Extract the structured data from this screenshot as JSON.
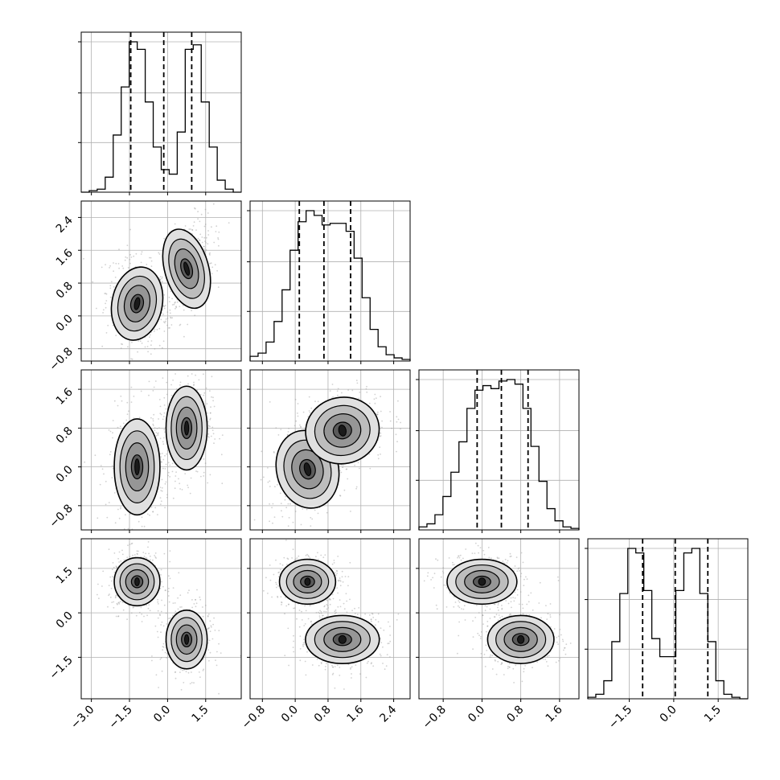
{
  "chart_data": {
    "type": "corner",
    "grid": true,
    "dimensions": 4,
    "variables": [
      {
        "index": 0,
        "range": [
          -3.4,
          2.9
        ],
        "ticks": [
          -3.0,
          -1.5,
          0.0,
          1.5
        ],
        "tick_labels": [
          "−3.0",
          "−1.5",
          "0.0",
          "1.5"
        ],
        "quantiles": [
          -1.45,
          -0.15,
          0.95
        ],
        "modes": [
          [
            -1.2,
            0.0
          ],
          [
            0.75,
            0.8
          ]
        ]
      },
      {
        "index": 1,
        "range": [
          -1.1,
          2.8
        ],
        "ticks": [
          -0.8,
          0.0,
          0.8,
          1.6,
          2.4
        ],
        "tick_labels": [
          "−0.8",
          "0.0",
          "0.8",
          "1.6",
          "2.4"
        ],
        "quantiles": [
          0.1,
          0.7,
          1.35
        ],
        "modes": [
          [
            0.3,
            0.0
          ],
          [
            1.15,
            0.8
          ]
        ]
      },
      {
        "index": 2,
        "range": [
          -1.3,
          2.0
        ],
        "ticks": [
          -0.8,
          0.0,
          0.8,
          1.6
        ],
        "tick_labels": [
          "−0.8",
          "0.0",
          "0.8",
          "1.6"
        ],
        "quantiles": [
          -0.1,
          0.4,
          0.95
        ],
        "modes": [
          [
            0.0,
            0.0
          ],
          [
            0.8,
            0.8
          ]
        ]
      },
      {
        "index": 3,
        "range": [
          -2.9,
          2.5
        ],
        "ticks": [
          -1.5,
          0.0,
          1.5
        ],
        "tick_labels": [
          "−1.5",
          "0.0",
          "1.5"
        ],
        "quantiles": [
          -1.05,
          0.05,
          1.15
        ],
        "modes": [
          [
            1.05,
            0.0
          ],
          [
            -0.9,
            0.8
          ]
        ]
      }
    ],
    "histograms": [
      {
        "variable": 0,
        "bin_edges": [
          -3.4,
          -3.085,
          -2.77,
          -2.455,
          -2.14,
          -1.825,
          -1.51,
          -1.195,
          -0.88,
          -0.565,
          -0.25,
          0.065,
          0.38,
          0.695,
          1.01,
          1.325,
          1.64,
          1.955,
          2.27,
          2.585,
          2.9
        ],
        "counts": [
          0,
          0.01,
          0.02,
          0.1,
          0.38,
          0.7,
          1.0,
          0.95,
          0.6,
          0.3,
          0.15,
          0.12,
          0.4,
          0.95,
          0.98,
          0.6,
          0.3,
          0.08,
          0.02,
          0.0
        ]
      },
      {
        "variable": 1,
        "bin_edges": [
          -1.1,
          -0.905,
          -0.71,
          -0.515,
          -0.32,
          -0.125,
          0.07,
          0.265,
          0.46,
          0.655,
          0.85,
          1.045,
          1.24,
          1.435,
          1.63,
          1.825,
          2.02,
          2.215,
          2.41,
          2.605,
          2.8
        ],
        "counts": [
          0.03,
          0.05,
          0.12,
          0.25,
          0.45,
          0.7,
          0.88,
          0.95,
          0.92,
          0.86,
          0.87,
          0.87,
          0.82,
          0.65,
          0.4,
          0.2,
          0.09,
          0.04,
          0.02,
          0.01
        ]
      },
      {
        "variable": 2,
        "bin_edges": [
          -1.3,
          -1.135,
          -0.97,
          -0.805,
          -0.64,
          -0.475,
          -0.31,
          -0.145,
          0.02,
          0.185,
          0.35,
          0.515,
          0.68,
          0.845,
          1.01,
          1.175,
          1.34,
          1.505,
          1.67,
          1.835,
          2.0
        ],
        "counts": [
          0.02,
          0.04,
          0.1,
          0.22,
          0.38,
          0.58,
          0.8,
          0.92,
          0.95,
          0.93,
          0.98,
          0.99,
          0.96,
          0.8,
          0.55,
          0.32,
          0.14,
          0.06,
          0.02,
          0.01
        ]
      },
      {
        "variable": 3,
        "bin_edges": [
          -2.9,
          -2.63,
          -2.36,
          -2.09,
          -1.82,
          -1.55,
          -1.28,
          -1.01,
          -0.74,
          -0.47,
          -0.2,
          0.07,
          0.34,
          0.61,
          0.88,
          1.15,
          1.42,
          1.69,
          1.96,
          2.23,
          2.5
        ],
        "counts": [
          0.01,
          0.03,
          0.12,
          0.38,
          0.7,
          1.0,
          0.97,
          0.72,
          0.4,
          0.28,
          0.28,
          0.72,
          0.97,
          1.0,
          0.7,
          0.38,
          0.12,
          0.03,
          0.01,
          0.0
        ]
      }
    ],
    "contour_panels": [
      {
        "x": 0,
        "y": 1,
        "clusters": [
          {
            "cx": -1.2,
            "cy": 0.3,
            "sx": 0.55,
            "sy": 0.5,
            "rho": -0.25
          },
          {
            "cx": 0.75,
            "cy": 1.15,
            "sx": 0.48,
            "sy": 0.55,
            "rho": 0.35
          }
        ]
      },
      {
        "x": 0,
        "y": 2,
        "clusters": [
          {
            "cx": -1.2,
            "cy": 0.0,
            "sx": 0.5,
            "sy": 0.55,
            "rho": 0.0
          },
          {
            "cx": 0.75,
            "cy": 0.8,
            "sx": 0.45,
            "sy": 0.48,
            "rho": 0.0
          }
        ]
      },
      {
        "x": 1,
        "y": 2,
        "clusters": [
          {
            "cx": 0.3,
            "cy": -0.05,
            "sx": 0.42,
            "sy": 0.45,
            "rho": 0.3
          },
          {
            "cx": 1.15,
            "cy": 0.75,
            "sx": 0.5,
            "sy": 0.38,
            "rho": 0.25
          }
        ]
      },
      {
        "x": 0,
        "y": 3,
        "clusters": [
          {
            "cx": -1.2,
            "cy": 1.05,
            "sx": 0.5,
            "sy": 0.45,
            "rho": 0.0
          },
          {
            "cx": 0.75,
            "cy": -0.9,
            "sx": 0.45,
            "sy": 0.55,
            "rho": 0.0
          }
        ]
      },
      {
        "x": 1,
        "y": 3,
        "clusters": [
          {
            "cx": 0.3,
            "cy": 1.05,
            "sx": 0.38,
            "sy": 0.42,
            "rho": 0.0
          },
          {
            "cx": 1.15,
            "cy": -0.9,
            "sx": 0.5,
            "sy": 0.45,
            "rho": 0.0
          }
        ]
      },
      {
        "x": 2,
        "y": 3,
        "clusters": [
          {
            "cx": 0.0,
            "cy": 1.05,
            "sx": 0.4,
            "sy": 0.42,
            "rho": 0.0
          },
          {
            "cx": 0.8,
            "cy": -0.9,
            "sx": 0.38,
            "sy": 0.45,
            "rho": 0.0
          }
        ]
      }
    ],
    "colors": {
      "line": "#000000",
      "grid": "#b0b0b0",
      "density_levels": [
        "#f7f7f7",
        "#e0e0e0",
        "#bdbdbd",
        "#969696",
        "#5a5a5a",
        "#1a1a1a"
      ],
      "scatter": "#9a9a9a"
    }
  }
}
